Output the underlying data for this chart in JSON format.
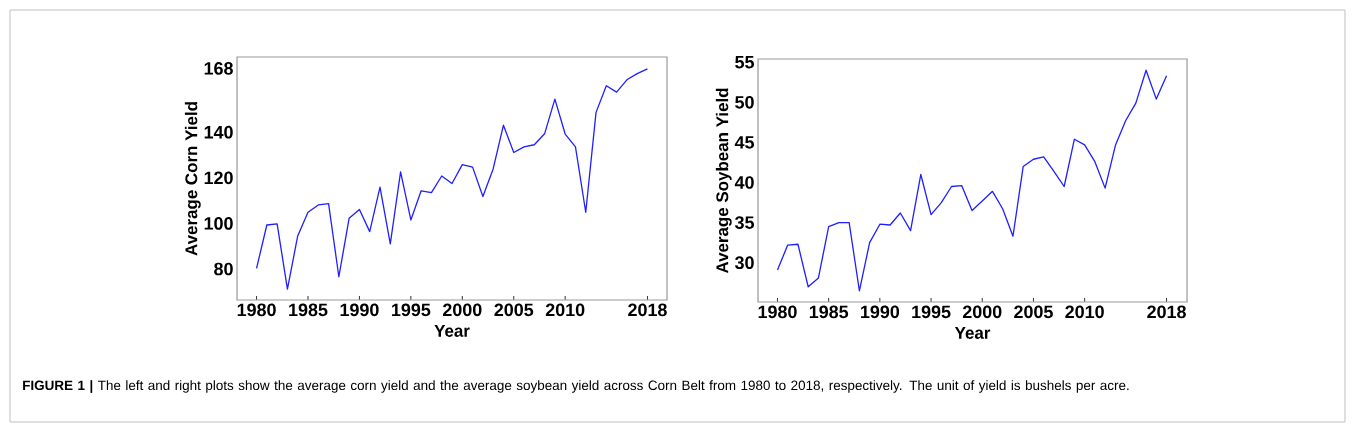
{
  "chart_data": [
    {
      "type": "line",
      "xlabel": "Year",
      "ylabel": "Average  Corn Yield",
      "color": "#1f1fff",
      "x": [
        1980,
        1981,
        1982,
        1983,
        1984,
        1985,
        1986,
        1987,
        1988,
        1989,
        1990,
        1991,
        1992,
        1993,
        1994,
        1995,
        1996,
        1997,
        1998,
        1999,
        2000,
        2001,
        2002,
        2003,
        2004,
        2005,
        2006,
        2007,
        2008,
        2009,
        2010,
        2011,
        2012,
        2013,
        2014,
        2015,
        2016,
        2017,
        2018
      ],
      "values": [
        80.3,
        99.3,
        99.8,
        71.2,
        94.5,
        104.9,
        108.1,
        108.7,
        76.6,
        102.3,
        106.1,
        96.4,
        115.9,
        91.0,
        122.6,
        101.5,
        114.3,
        113.5,
        120.8,
        117.5,
        125.8,
        124.7,
        111.8,
        123.9,
        143.1,
        131.1,
        133.6,
        134.5,
        139.3,
        154.5,
        139.2,
        133.6,
        104.9,
        148.7,
        160.4,
        157.6,
        163.0,
        165.7,
        167.8
      ],
      "xlim": [
        1978.1,
        2019.9
      ],
      "ylim": [
        66.4,
        173
      ],
      "xticks": [
        1980,
        1985,
        1990,
        1995,
        2000,
        2005,
        2010,
        2018
      ],
      "yticks": [
        80,
        100,
        120,
        140,
        168
      ],
      "annotations": [
        "**FIGURE 1 |** The left and right plots show the average corn yield and the average soybean yield across Corn Belt from 1980 to 2018, respectively. The unit of yield is bushels per acre."
      ]
    },
    {
      "type": "line",
      "xlabel": "Year",
      "ylabel": "Average Soybean Yield",
      "color": "#1f1fff",
      "x": [
        1980,
        1981,
        1982,
        1983,
        1984,
        1985,
        1986,
        1987,
        1988,
        1989,
        1990,
        1991,
        1992,
        1993,
        1994,
        1995,
        1996,
        1997,
        1998,
        1999,
        2000,
        2001,
        2002,
        2003,
        2004,
        2005,
        2006,
        2007,
        2008,
        2009,
        2010,
        2011,
        2012,
        2013,
        2014,
        2015,
        2016,
        2017,
        2018
      ],
      "values": [
        29.1,
        32.2,
        32.3,
        27.0,
        28.1,
        34.5,
        35.0,
        35.0,
        26.5,
        32.5,
        34.8,
        34.7,
        36.2,
        34.0,
        41.0,
        36.0,
        37.5,
        39.5,
        39.6,
        36.5,
        37.7,
        38.9,
        36.7,
        33.3,
        42.0,
        42.9,
        43.2,
        41.4,
        39.5,
        45.4,
        44.7,
        42.6,
        39.3,
        44.6,
        47.7,
        49.9,
        54.0,
        50.4,
        53.3
      ],
      "xlim": [
        1978.1,
        2020
      ],
      "ylim": [
        25.1,
        55.4
      ],
      "xticks": [
        1980,
        1985,
        1990,
        1995,
        2000,
        2005,
        2010,
        2018
      ],
      "yticks": [
        30,
        35,
        40,
        45,
        50,
        55
      ]
    }
  ]
}
